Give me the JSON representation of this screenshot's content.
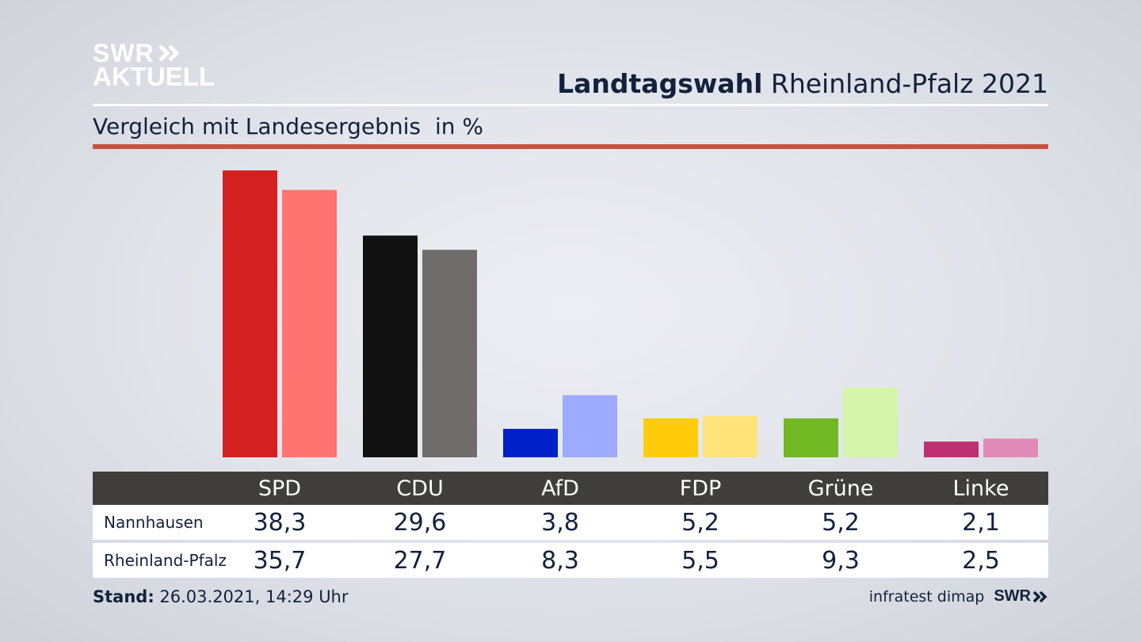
{
  "logo": {
    "line1": "SWR",
    "line2": "AKTUELL"
  },
  "header": {
    "title_bold": "Landtagswahl",
    "title_rest": "Rheinland-Pfalz 2021",
    "subtitle": "Vergleich mit Landesergebnis",
    "unit": "in %"
  },
  "colors": {
    "accent_line": "#c9503f",
    "SPD": [
      "#d42020",
      "#ff7470"
    ],
    "CDU": [
      "#121212",
      "#6e6d6b"
    ],
    "AfD": [
      "#0021c7",
      "#9cabff"
    ],
    "FDP": [
      "#ffcc0c",
      "#ffe27a"
    ],
    "Grüne": [
      "#72b823",
      "#d5f5aa"
    ],
    "Linke": [
      "#bf2f73",
      "#e28ab7"
    ]
  },
  "chart_data": {
    "type": "bar",
    "categories": [
      "SPD",
      "CDU",
      "AfD",
      "FDP",
      "Grüne",
      "Linke"
    ],
    "series": [
      {
        "name": "Nannhausen",
        "values": [
          38.3,
          29.6,
          3.8,
          5.2,
          5.2,
          2.1
        ],
        "labels": [
          "38,3",
          "29,6",
          "3,8",
          "5,2",
          "5,2",
          "2,1"
        ]
      },
      {
        "name": "Rheinland-Pfalz",
        "values": [
          35.7,
          27.7,
          8.3,
          5.5,
          9.3,
          2.5
        ],
        "labels": [
          "35,7",
          "27,7",
          "8,3",
          "5,5",
          "9,3",
          "2,5"
        ]
      }
    ],
    "ylim": [
      0,
      40
    ]
  },
  "footer": {
    "stand_label": "Stand:",
    "stand_value": "26.03.2021, 14:29 Uhr",
    "source": "infratest dimap",
    "brand": "SWR"
  }
}
